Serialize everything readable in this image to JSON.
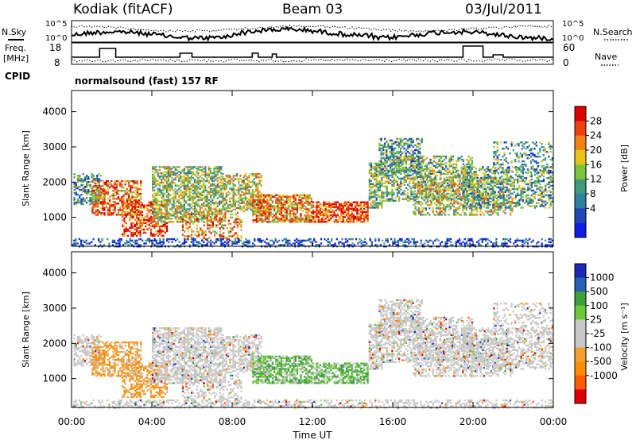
{
  "header": {
    "station": "Kodiak (fitACF)",
    "beam": "Beam 03",
    "date": "03/Jul/2011"
  },
  "panels": {
    "noise": {
      "left_label": "N.Sky",
      "right_label": "N.Search",
      "left_ticks": [
        "10^5",
        "10^0"
      ],
      "right_ticks": [
        "10^5",
        "10^0"
      ]
    },
    "freq": {
      "left_label_1": "Freq.",
      "left_label_2": "[MHz]",
      "right_label": "Nave",
      "left_ticks": [
        "18",
        "8"
      ],
      "right_ticks": [
        "60",
        "0"
      ]
    },
    "cpid": {
      "left_label": "CPID",
      "text": "normalsound (fast) 157 RF"
    }
  },
  "colors": {
    "power": [
      "#0a1ee6",
      "#1e46b4",
      "#2f7f9f",
      "#3f9a7a",
      "#7cc43c",
      "#e8c41a",
      "#f08214",
      "#ee4010",
      "#e00000"
    ],
    "velocity": [
      "#e00000",
      "#ff5a00",
      "#ff8c00",
      "#f0a030",
      "#c8c8c8",
      "#c8c8c8",
      "#6cc83c",
      "#3ca03c",
      "#2860b4",
      "#1a2ab4"
    ]
  },
  "chart_data": [
    {
      "type": "heatmap",
      "title": "Power",
      "ylabel": "Slant Range [km]",
      "ylim": [
        180,
        4600
      ],
      "y_ticks": [
        "4000",
        "3000",
        "2000",
        "1000"
      ],
      "colorbar": {
        "label": "Power [dB]",
        "range": [
          0,
          32
        ],
        "ticks": [
          "28",
          "24",
          "20",
          "16",
          "12",
          "8",
          "4"
        ]
      }
    },
    {
      "type": "heatmap",
      "title": "Velocity",
      "xlabel": "Time UT",
      "ylabel": "Slant Range [km]",
      "ylim": [
        180,
        4600
      ],
      "x_ticks": [
        "00:00",
        "04:00",
        "08:00",
        "12:00",
        "16:00",
        "20:00",
        "00:00"
      ],
      "y_ticks": [
        "4000",
        "3000",
        "2000",
        "1000"
      ],
      "colorbar": {
        "label": "Velocity [m s⁻¹]",
        "ticks": [
          "1000",
          "500",
          "100",
          "25",
          "-25",
          "-100",
          "-500",
          "-1000"
        ]
      }
    }
  ]
}
